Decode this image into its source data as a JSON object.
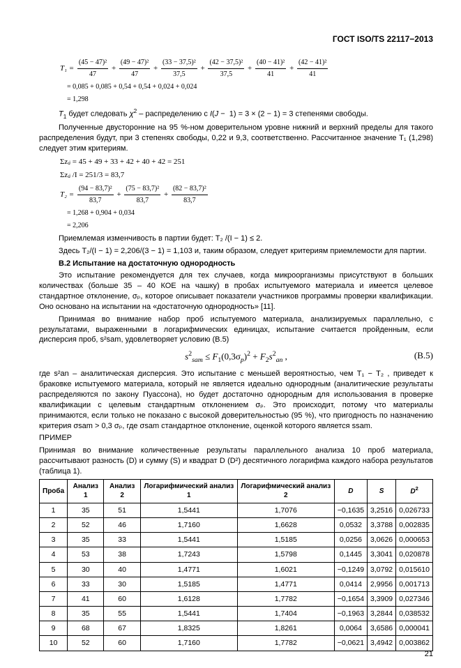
{
  "doc_id": "ГОСТ ISO/TS 22117−2013",
  "t1_eq_lhs": "T₁ =",
  "t1_terms": [
    {
      "num": "(45 − 47)²",
      "den": "47"
    },
    {
      "num": "(49 − 47)²",
      "den": "47"
    },
    {
      "num": "(33 − 37,5)²",
      "den": "37,5"
    },
    {
      "num": "(42 − 37,5)²",
      "den": "37,5"
    },
    {
      "num": "(40 − 41)²",
      "den": "41"
    },
    {
      "num": "(42 − 41)²",
      "den": "41"
    }
  ],
  "t1_expanded": "= 0,085 + 0,085 + 0,54 + 0,54 + 0,024 + 0,024",
  "t1_result": "= 1,298",
  "p1": "T₁ будет следовать χ² – распределению с I(J − 1) = 3 × (2 − 1) = 3 степенями свободы.",
  "p2": "Полученные двусторонние на 95 %-ном доверительном уровне нижний и верхний пределы для такого распределения будут, при 3 степенях свободы, 0,22 и 9,3, соответственно. Рассчитанное значение T₁ (1,298) следует этим критериям.",
  "sum1": "Σzᵢⱼ = 45 + 49 + 33 + 42 + 40 + 42 = 251",
  "sum2": "Σzᵢⱼ /I = 251/3 = 83,7",
  "t2_eq_lhs": "T₂ =",
  "t2_terms": [
    {
      "num": "(94 − 83,7)²",
      "den": "83,7"
    },
    {
      "num": "(75 − 83,7)²",
      "den": "83,7"
    },
    {
      "num": "(82 − 83,7)²",
      "den": "83,7"
    }
  ],
  "t2_expanded": "= 1,268 + 0,904 + 0,034",
  "t2_result": "= 2,206",
  "p3": "Приемлемая изменчивость в партии будет: T₂ /(I − 1) ≤ 2.",
  "p4": "Здесь T₂/(I − 1) = 2,206/(3 − 1) = 1,103 и, таким образом, следует критериям приемлемости для партии.",
  "h_b2": "B.2 Испытание на достаточную однородность",
  "p5": "Это испытание рекомендуется для тех случаев, когда микроорганизмы присутствуют в больших количествах (больше 35 – 40 КОЕ на чашку) в пробах испытуемого материала и имеется целевое стандартное отклонение, σₚ, которое описывает показатели участников программы проверки квалификации. Оно основано на испытании на «достаточную однородность» [11].",
  "p6": "Принимая во внимание набор проб испытуемого материала, анализируемых параллельно, с результатами, выраженными в логарифмических единицах, испытание считается пройденным, если дисперсия проб, s²sam, удовлетворяет условию (B.5)",
  "eq_b5": "s²sam ≤ F₁(0,3σₚ)² + F₂s²an ,",
  "eq_b5_num": "(B.5)",
  "p7": "где s²an – аналитическая дисперсия. Это испытание с меньшей вероятностью, чем T₁ − T₂ , приведет к браковке испытуемого материала, который не является идеально однородным (аналитические результаты распределяются по закону Пуассона), но будет достаточно однородным для использования в проверке квалификации с целевым стандартным отклонением σₚ. Это происходит, потому что материалы принимаются, если только не показано с высокой доверительностью (95 %), что пригодность по назначению критерия σsam > 0,3 σₚ, где σsam стандартное отклонение, оценкой которого является ssam.",
  "primer": "ПРИМЕР",
  "p8": "Принимая во внимание количественные результаты параллельного анализа 10 проб материала, рассчитывают разность (D) и сумму (S) и квадрат D (D²) десятичного логарифма каждого набора результатов (таблица 1).",
  "table": {
    "headers": [
      "Проба",
      "Анализ 1",
      "Анализ 2",
      "Логарифмический анализ 1",
      "Логарифмический анализ 2",
      "D",
      "S",
      "D²"
    ],
    "rows": [
      [
        "1",
        "35",
        "51",
        "1,5441",
        "1,7076",
        "−0,1635",
        "3,2516",
        "0,026733"
      ],
      [
        "2",
        "52",
        "46",
        "1,7160",
        "1,6628",
        "0,0532",
        "3,3788",
        "0,002835"
      ],
      [
        "3",
        "35",
        "33",
        "1,5441",
        "1,5185",
        "0,0256",
        "3,0626",
        "0,000653"
      ],
      [
        "4",
        "53",
        "38",
        "1,7243",
        "1,5798",
        "0,1445",
        "3,3041",
        "0,020878"
      ],
      [
        "5",
        "30",
        "40",
        "1,4771",
        "1,6021",
        "−0,1249",
        "3,0792",
        "0,015610"
      ],
      [
        "6",
        "33",
        "30",
        "1,5185",
        "1,4771",
        "0,0414",
        "2,9956",
        "0,001713"
      ],
      [
        "7",
        "41",
        "60",
        "1,6128",
        "1,7782",
        "−0,1654",
        "3,3909",
        "0,027346"
      ],
      [
        "8",
        "35",
        "55",
        "1,5441",
        "1,7404",
        "−0,1963",
        "3,2844",
        "0,038532"
      ],
      [
        "9",
        "68",
        "67",
        "1,8325",
        "1,8261",
        "0,0064",
        "3,6586",
        "0,000041"
      ],
      [
        "10",
        "52",
        "60",
        "1,7160",
        "1,7782",
        "−0,0621",
        "3,4942",
        "0,003862"
      ]
    ]
  },
  "page_number": "21"
}
